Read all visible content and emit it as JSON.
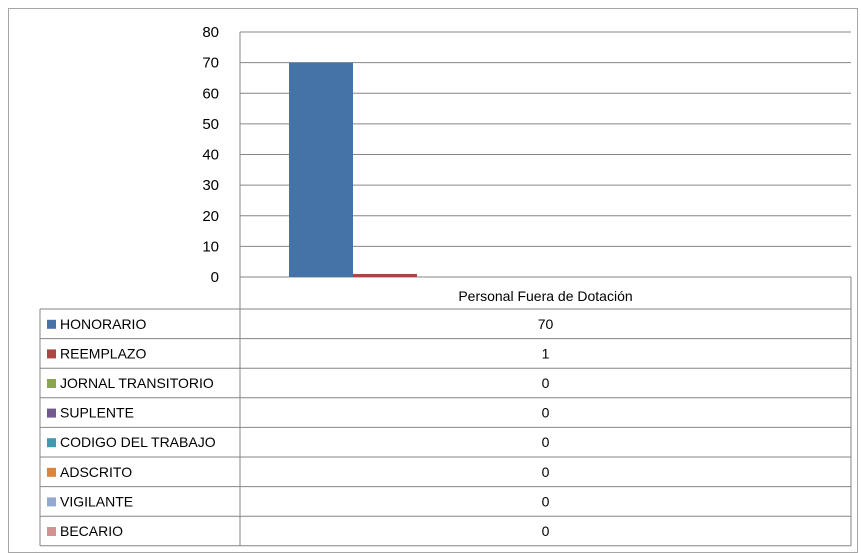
{
  "chart_data": {
    "type": "bar",
    "categories": [
      "Personal Fuera de Dotación"
    ],
    "ylim": [
      0,
      80
    ],
    "yticks": [
      0,
      10,
      20,
      30,
      40,
      50,
      60,
      70,
      80
    ],
    "grid": true,
    "legend": "data-table",
    "series": [
      {
        "name": "HONORARIO",
        "values": [
          70
        ],
        "color": "#4572a7"
      },
      {
        "name": "REEMPLAZO",
        "values": [
          1
        ],
        "color": "#aa4643"
      },
      {
        "name": "JORNAL TRANSITORIO",
        "values": [
          0
        ],
        "color": "#89a54e"
      },
      {
        "name": "SUPLENTE",
        "values": [
          0
        ],
        "color": "#71588f"
      },
      {
        "name": "CODIGO DEL TRABAJO",
        "values": [
          0
        ],
        "color": "#4198af"
      },
      {
        "name": "ADSCRITO",
        "values": [
          0
        ],
        "color": "#db843d"
      },
      {
        "name": "VIGILANTE",
        "values": [
          0
        ],
        "color": "#93a9cf"
      },
      {
        "name": "BECARIO",
        "values": [
          0
        ],
        "color": "#d19392"
      }
    ]
  }
}
